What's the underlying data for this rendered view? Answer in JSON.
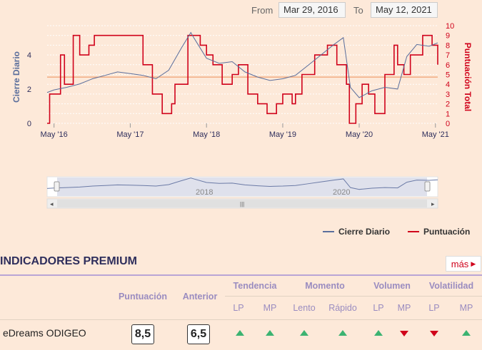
{
  "range": {
    "from_label": "From",
    "from_value": "Mar 29, 2016",
    "to_label": "To",
    "to_value": "May 12, 2021"
  },
  "chart_data": {
    "type": "line",
    "x_ticks": [
      "May '16",
      "May '17",
      "May '18",
      "May '19",
      "May '20",
      "May '21"
    ],
    "y_left": {
      "label": "Cierre Diario",
      "ticks": [
        "0",
        "2",
        "4"
      ],
      "range": [
        0,
        5.7
      ]
    },
    "y_right": {
      "label": "Puntuación Total",
      "ticks": [
        "0",
        "1",
        "2",
        "3",
        "4",
        "5",
        "6",
        "7",
        "8",
        "9",
        "10"
      ],
      "range": [
        0,
        10
      ]
    },
    "reference_line": {
      "axis": "left",
      "value": 2.7,
      "color": "#f0a070"
    },
    "series": [
      {
        "name": "Cierre Diario",
        "axis": "left",
        "color": "#5a6e9c",
        "x": [
          "2016-03-29",
          "2016-05-01",
          "2016-07-01",
          "2016-09-01",
          "2016-11-01",
          "2017-01-01",
          "2017-03-01",
          "2017-05-01",
          "2017-07-01",
          "2017-09-01",
          "2017-11-01",
          "2018-01-01",
          "2018-02-15",
          "2018-03-01",
          "2018-05-01",
          "2018-07-01",
          "2018-09-01",
          "2018-11-01",
          "2019-01-01",
          "2019-03-01",
          "2019-05-01",
          "2019-07-01",
          "2019-09-01",
          "2019-11-01",
          "2020-01-01",
          "2020-02-15",
          "2020-03-20",
          "2020-05-01",
          "2020-07-01",
          "2020-09-01",
          "2020-11-01",
          "2020-12-15",
          "2021-02-01",
          "2021-04-01",
          "2021-05-12"
        ],
        "values": [
          1.8,
          1.95,
          2.1,
          2.3,
          2.6,
          2.8,
          3.0,
          2.9,
          2.8,
          2.6,
          3.1,
          4.4,
          5.3,
          5.0,
          3.8,
          3.5,
          3.6,
          3.0,
          2.7,
          2.5,
          2.6,
          2.8,
          3.4,
          4.0,
          4.6,
          5.0,
          2.1,
          1.5,
          1.9,
          2.1,
          2.0,
          3.9,
          4.6,
          4.5,
          4.7
        ]
      },
      {
        "name": "Puntuación",
        "axis": "right",
        "color": "#d0021b",
        "x": [
          "2016-03-29",
          "2016-04-10",
          "2016-06-01",
          "2016-06-20",
          "2016-08-01",
          "2016-09-01",
          "2016-10-15",
          "2016-11-10",
          "2017-02-01",
          "2017-07-01",
          "2017-08-15",
          "2017-10-01",
          "2017-11-15",
          "2017-12-01",
          "2018-02-01",
          "2018-04-01",
          "2018-05-01",
          "2018-06-01",
          "2018-07-15",
          "2018-09-01",
          "2018-10-01",
          "2018-11-15",
          "2019-01-01",
          "2019-02-15",
          "2019-04-01",
          "2019-05-01",
          "2019-06-15",
          "2019-07-01",
          "2019-08-01",
          "2019-10-01",
          "2019-12-01",
          "2020-01-15",
          "2020-03-01",
          "2020-03-15",
          "2020-04-15",
          "2020-05-15",
          "2020-06-15",
          "2020-07-15",
          "2020-09-01",
          "2020-10-15",
          "2020-11-01",
          "2020-12-01",
          "2021-01-01",
          "2021-03-01",
          "2021-04-15",
          "2021-05-12"
        ],
        "values": [
          0,
          3,
          7,
          4,
          9,
          7,
          8,
          9,
          9,
          6,
          3,
          1,
          2,
          4,
          9,
          8,
          7,
          6,
          4,
          5,
          6,
          3,
          2,
          1,
          2,
          3,
          2,
          3,
          5,
          7,
          8,
          6,
          4,
          0,
          2,
          4,
          3,
          1,
          5,
          8,
          6,
          5,
          7,
          9,
          8,
          6
        ]
      }
    ],
    "legend": [
      "Cierre Diario",
      "Puntuación"
    ],
    "navigator": {
      "labels": [
        "2018",
        "2020"
      ]
    }
  },
  "premium": {
    "title": "INDICADORES PREMIUM",
    "more_label": "más",
    "headers": {
      "score": "Puntuación",
      "previous": "Anterior",
      "groups": [
        {
          "label": "Tendencia",
          "subs": [
            "LP",
            "MP"
          ]
        },
        {
          "label": "Momento",
          "subs": [
            "Lento",
            "Rápido"
          ]
        },
        {
          "label": "Volumen",
          "subs": [
            "LP",
            "MP"
          ]
        },
        {
          "label": "Volatilidad",
          "subs": [
            "LP",
            "MP"
          ]
        }
      ]
    },
    "row": {
      "name": "eDreams ODIGEO",
      "score": "8,5",
      "previous": "6,5",
      "signals": [
        "up",
        "up",
        "up",
        "up",
        "up",
        "down",
        "down",
        "up"
      ],
      "colors": {
        "up": "#3cb371",
        "down": "#d0021b"
      }
    }
  }
}
